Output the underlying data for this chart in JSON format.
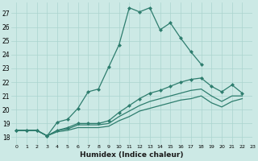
{
  "xlabel": "Humidex (Indice chaleur)",
  "bg_color": "#cce9e5",
  "grid_color": "#aad4cf",
  "line_color": "#2e7d6e",
  "xlim": [
    -0.5,
    23
  ],
  "ylim": [
    17.5,
    27.8
  ],
  "yticks": [
    18,
    19,
    20,
    21,
    22,
    23,
    24,
    25,
    26,
    27
  ],
  "xtick_labels": [
    "0",
    "1",
    "2",
    "3",
    "4",
    "5",
    "6",
    "7",
    "8",
    "9",
    "10",
    "11",
    "12",
    "13",
    "14",
    "15",
    "16",
    "17",
    "18",
    "19",
    "20",
    "21",
    "22",
    "23"
  ],
  "series": [
    {
      "x": [
        0,
        1,
        2,
        3,
        4,
        5,
        6,
        7,
        8,
        9,
        10,
        11,
        12,
        13,
        14,
        15,
        16,
        17,
        18,
        19,
        20,
        21,
        22
      ],
      "y": [
        18.5,
        18.5,
        18.5,
        18.1,
        19.1,
        19.3,
        20.1,
        21.3,
        21.5,
        23.1,
        24.7,
        27.4,
        27.1,
        27.4,
        25.8,
        26.3,
        25.2,
        24.2,
        23.3,
        null,
        null,
        null,
        null
      ],
      "has_markers": true
    },
    {
      "x": [
        0,
        1,
        2,
        3,
        4,
        5,
        6,
        7,
        8,
        9,
        10,
        11,
        12,
        13,
        14,
        15,
        16,
        17,
        18,
        19,
        20,
        21,
        22
      ],
      "y": [
        18.5,
        18.5,
        18.5,
        18.1,
        18.5,
        18.7,
        19.0,
        19.0,
        19.0,
        19.2,
        19.8,
        20.3,
        20.8,
        21.2,
        21.4,
        21.7,
        22.0,
        22.2,
        22.3,
        21.7,
        21.3,
        21.8,
        21.2
      ],
      "has_markers": true
    },
    {
      "x": [
        0,
        1,
        2,
        3,
        4,
        5,
        6,
        7,
        8,
        9,
        10,
        11,
        12,
        13,
        14,
        15,
        16,
        17,
        18,
        19,
        20,
        21,
        22
      ],
      "y": [
        18.5,
        18.5,
        18.5,
        18.1,
        18.5,
        18.6,
        18.9,
        18.9,
        18.9,
        19.0,
        19.5,
        19.9,
        20.3,
        20.6,
        20.8,
        21.0,
        21.2,
        21.4,
        21.5,
        21.0,
        20.6,
        21.0,
        21.0
      ],
      "has_markers": false
    },
    {
      "x": [
        0,
        1,
        2,
        3,
        4,
        5,
        6,
        7,
        8,
        9,
        10,
        11,
        12,
        13,
        14,
        15,
        16,
        17,
        18,
        19,
        20,
        21,
        22
      ],
      "y": [
        18.5,
        18.5,
        18.5,
        18.1,
        18.4,
        18.5,
        18.7,
        18.7,
        18.7,
        18.8,
        19.2,
        19.5,
        19.9,
        20.1,
        20.3,
        20.5,
        20.7,
        20.8,
        21.0,
        20.5,
        20.2,
        20.6,
        20.8
      ],
      "has_markers": false
    }
  ],
  "marker": "D",
  "markersize": 2.5,
  "linewidth": 0.9,
  "xlabel_fontsize": 6.5,
  "ytick_fontsize": 5.5,
  "xtick_fontsize": 4.5
}
